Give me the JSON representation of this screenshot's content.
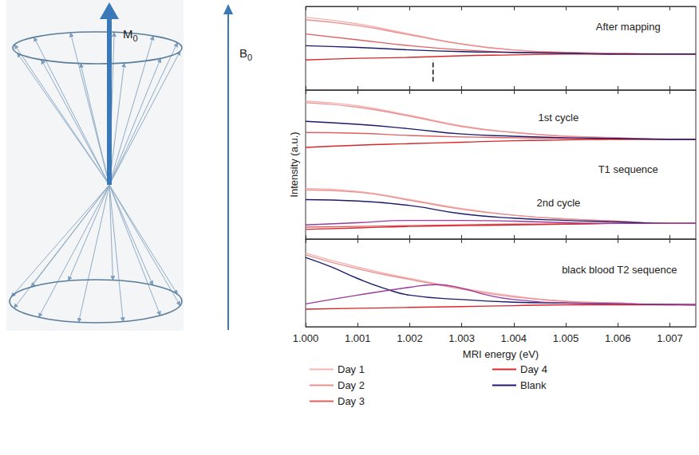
{
  "diagram": {
    "labels": [
      {
        "text": "M",
        "subscript": "0"
      },
      {
        "text": "B",
        "subscript": "0"
      }
    ]
  },
  "chart_data": [
    {
      "type": "line",
      "marker": "none",
      "tick_labels": false,
      "x": [
        1.0,
        1.001,
        1.002,
        1.003,
        1.004,
        1.005,
        1.006,
        1.007,
        1.0075
      ],
      "xlim": [
        1.0,
        1.0075
      ],
      "xticks": [
        1.0,
        1.001,
        1.002,
        1.003,
        1.004,
        1.005,
        1.006,
        1.007
      ],
      "ylim": [
        0,
        10
      ],
      "labels": [
        {
          "text": "After mapping",
          "x": 1.0062,
          "y": 7.6
        }
      ],
      "annotations": [
        {
          "x": 1.00245,
          "y": [
            1.0,
            3.6
          ],
          "line_style": "dashed"
        }
      ],
      "series": [
        {
          "name": "Day 1",
          "color": "#f4b2b2",
          "values": [
            8.7,
            7.9,
            6.7,
            5.5,
            4.8,
            4.5,
            4.4,
            4.3,
            4.3
          ]
        },
        {
          "name": "Day 2",
          "color": "#ec8f8f",
          "values": [
            8.4,
            7.7,
            6.6,
            5.5,
            4.8,
            4.5,
            4.4,
            4.3,
            4.3
          ]
        },
        {
          "name": "Day 3",
          "color": "#e06060",
          "values": [
            6.7,
            6.0,
            5.3,
            4.8,
            4.5,
            4.4,
            4.3,
            4.3,
            4.3
          ]
        },
        {
          "name": "Day 4",
          "color": "#d9262b",
          "values": [
            3.6,
            3.8,
            3.9,
            4.1,
            4.2,
            4.3,
            4.3,
            4.3,
            4.3
          ]
        },
        {
          "name": "Blank",
          "color": "#1b1b6e",
          "values": [
            5.3,
            5.1,
            4.8,
            4.6,
            4.5,
            4.4,
            4.3,
            4.3,
            4.3
          ]
        }
      ]
    },
    {
      "type": "line",
      "marker": "none",
      "tick_labels": false,
      "x": [
        1.0,
        1.001,
        1.002,
        1.003,
        1.004,
        1.005,
        1.006,
        1.007,
        1.0075
      ],
      "xlim": [
        1.0,
        1.0075
      ],
      "xticks": [
        1.0,
        1.001,
        1.002,
        1.003,
        1.004,
        1.005,
        1.006,
        1.007
      ],
      "ylim": [
        0,
        20
      ],
      "y_label": "Intensity (a.u.)",
      "labels": [
        {
          "text": "1st cycle",
          "x": 1.00486,
          "y": 16.3
        },
        {
          "text": "T1 sequence",
          "x": 1.0062,
          "y": 9.4
        },
        {
          "text": "2nd cycle",
          "x": 1.00486,
          "y": 4.9
        }
      ],
      "series": [
        {
          "name": "Day 1",
          "color": "#f4b2b2",
          "values": [
            18.5,
            17.9,
            16.6,
            15.2,
            14.3,
            13.8,
            13.6,
            13.4,
            13.4
          ]
        },
        {
          "name": "Day 2",
          "color": "#ec8f8f",
          "values": [
            18.3,
            17.7,
            16.5,
            15.1,
            14.3,
            13.8,
            13.6,
            13.4,
            13.4
          ]
        },
        {
          "name": "Day 3",
          "color": "#e06060",
          "values": [
            14.3,
            14.2,
            13.9,
            13.7,
            13.6,
            13.5,
            13.4,
            13.4,
            13.4
          ]
        },
        {
          "name": "Day 4",
          "color": "#d9262b",
          "values": [
            12.3,
            12.6,
            12.8,
            13.0,
            13.2,
            13.3,
            13.4,
            13.4,
            13.4
          ]
        },
        {
          "name": "Blank",
          "color": "#1b1b6e",
          "values": [
            15.8,
            15.4,
            14.8,
            14.1,
            13.8,
            13.6,
            13.5,
            13.4,
            13.4
          ]
        },
        {
          "name": "Day 1",
          "color": "#f4b2b2",
          "values": [
            6.8,
            6.4,
            5.3,
            4.1,
            3.2,
            2.7,
            2.4,
            2.1,
            2.1
          ]
        },
        {
          "name": "Day 2",
          "color": "#ec8f8f",
          "values": [
            6.6,
            6.3,
            5.2,
            4.0,
            3.2,
            2.7,
            2.4,
            2.1,
            2.1
          ]
        },
        {
          "name": "Day 3",
          "color": "#e06060",
          "values": [
            1.6,
            1.7,
            1.8,
            1.9,
            2.0,
            2.0,
            2.1,
            2.1,
            2.1
          ]
        },
        {
          "name": "Day 4",
          "color": "#d9262b",
          "values": [
            1.3,
            1.5,
            1.7,
            1.8,
            1.9,
            2.0,
            2.1,
            2.1,
            2.1
          ]
        },
        {
          "name": "Blank",
          "color": "#1b1b6e",
          "values": [
            5.3,
            5.1,
            4.5,
            3.4,
            2.8,
            2.5,
            2.3,
            2.1,
            2.1
          ]
        },
        {
          "color": "#9a3a9c",
          "values": [
            1.9,
            2.2,
            2.5,
            2.5,
            2.4,
            2.2,
            2.1,
            2.1,
            2.1
          ]
        }
      ]
    },
    {
      "type": "line",
      "marker": "none",
      "tick_labels": "x",
      "legend": "bottom",
      "x": [
        1.0,
        1.001,
        1.002,
        1.003,
        1.004,
        1.005,
        1.006,
        1.007,
        1.0075
      ],
      "xlim": [
        1.0,
        1.0075
      ],
      "xticks": [
        {
          "value": 1.0,
          "label": "1.000"
        },
        {
          "value": 1.001,
          "label": "1.001"
        },
        {
          "value": 1.002,
          "label": "1.002"
        },
        {
          "value": 1.003,
          "label": "1.003"
        },
        {
          "value": 1.004,
          "label": "1.004"
        },
        {
          "value": 1.005,
          "label": "1.005"
        },
        {
          "value": 1.006,
          "label": "1.006"
        },
        {
          "value": 1.007,
          "label": "1.007"
        }
      ],
      "x_label": "MRI energy (eV)",
      "ylim": [
        0,
        10
      ],
      "labels": [
        {
          "text": "black blood T2 sequence",
          "x": 1.0062,
          "y": 6.5
        }
      ],
      "series": [
        {
          "name": "Day 1",
          "color": "#f4b2b2",
          "values": [
            8.4,
            6.8,
            5.5,
            4.4,
            3.5,
            2.9,
            2.7,
            2.5,
            2.5
          ]
        },
        {
          "name": "Day 2",
          "color": "#ec8f8f",
          "values": [
            8.2,
            6.6,
            5.4,
            4.3,
            3.4,
            2.9,
            2.7,
            2.5,
            2.5
          ]
        },
        {
          "name": "Day 4",
          "color": "#d9262b",
          "values": [
            2.0,
            2.1,
            2.2,
            2.3,
            2.4,
            2.5,
            2.5,
            2.5,
            2.5
          ]
        },
        {
          "name": "Blank",
          "color": "#1b1b6e",
          "x": [
            1.0,
            1.0005,
            1.001,
            1.0015,
            1.002,
            1.003,
            1.004,
            1.005,
            1.006,
            1.0075
          ],
          "values": [
            7.9,
            6.8,
            5.5,
            4.4,
            3.6,
            3.1,
            2.8,
            2.7,
            2.6,
            2.5
          ]
        },
        {
          "color": "#9a3a9c",
          "x": [
            1.0,
            1.001,
            1.002,
            1.0025,
            1.003,
            1.0035,
            1.004,
            1.005,
            1.006,
            1.0075
          ],
          "values": [
            2.6,
            3.6,
            4.5,
            4.8,
            4.4,
            3.6,
            3.1,
            2.7,
            2.6,
            2.5
          ]
        }
      ]
    }
  ]
}
